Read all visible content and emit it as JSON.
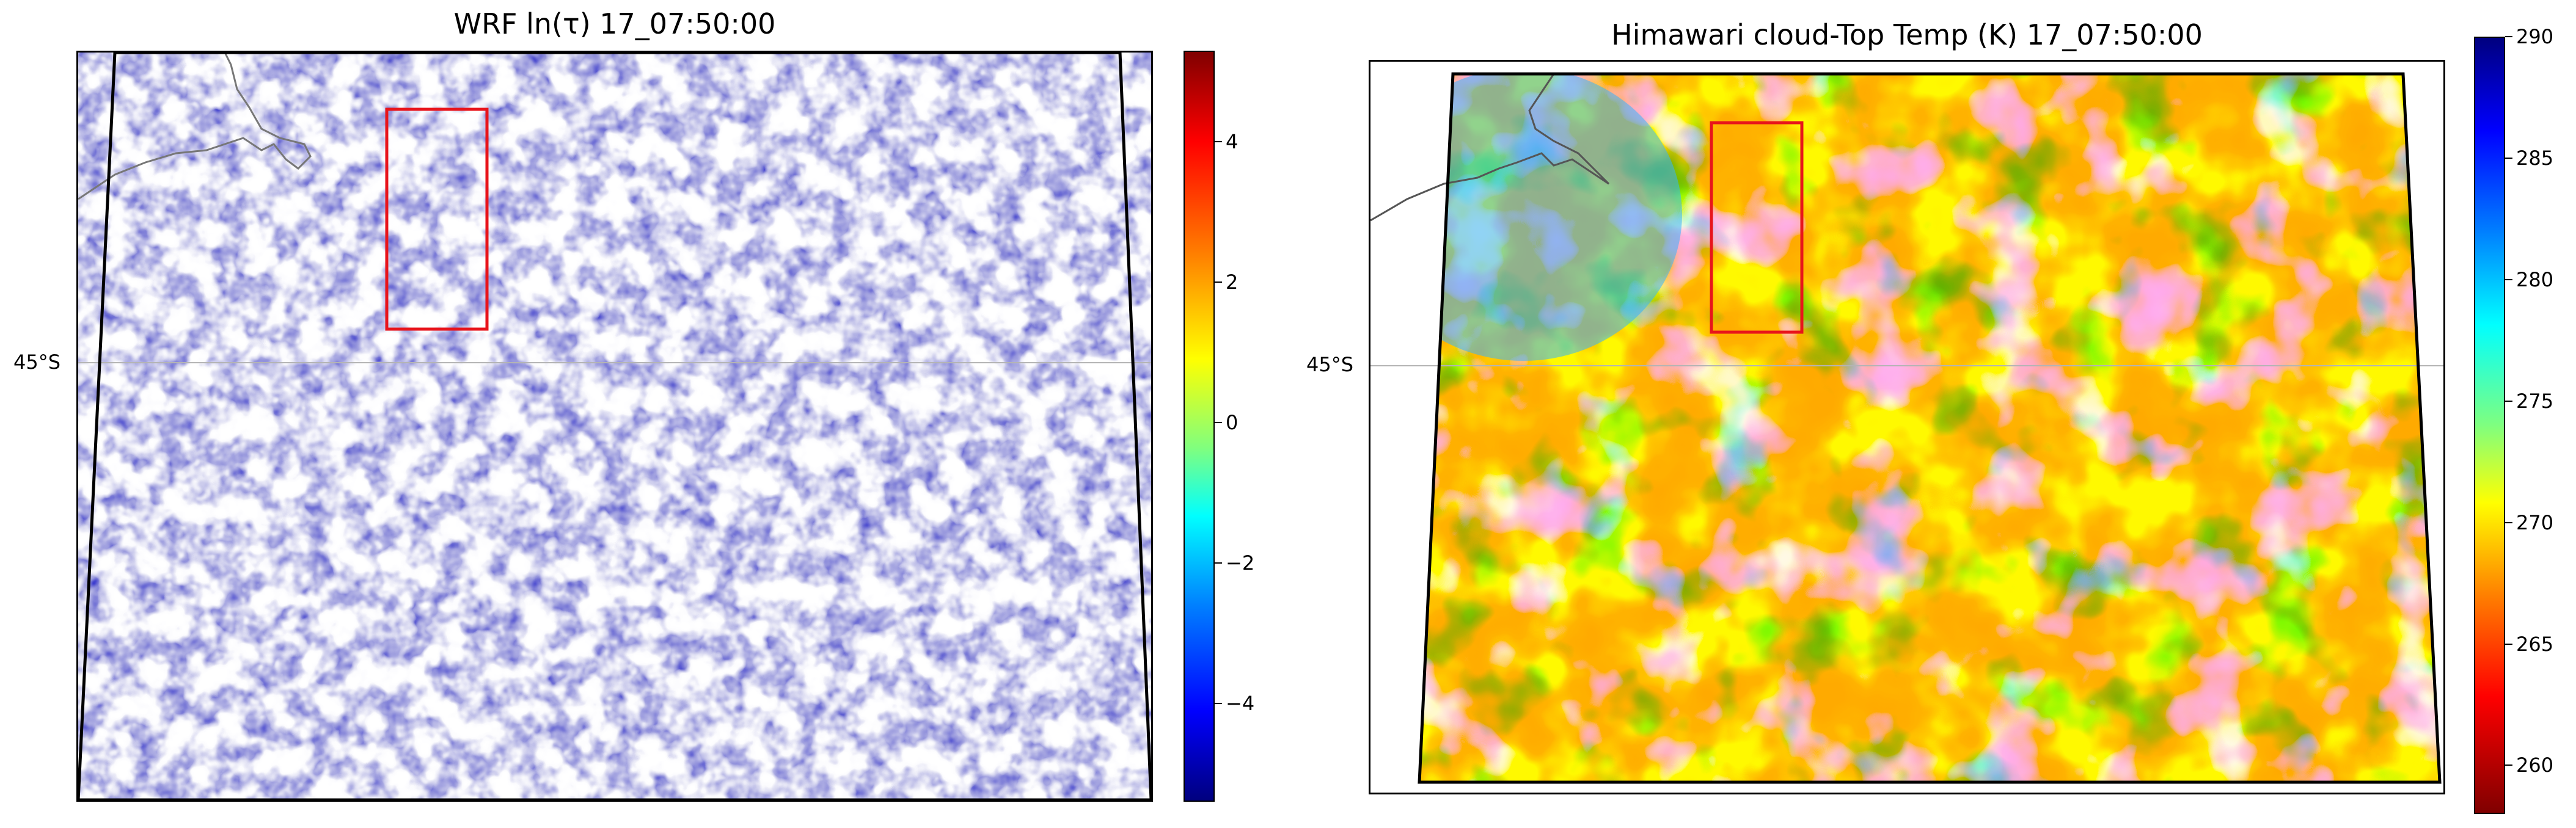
{
  "panels": {
    "left": {
      "title": "WRF ln(τ) 17_07:50:00",
      "lat_label": "45°S",
      "colormap": "jet",
      "colorbar": {
        "min": -5.4,
        "max": 5.3,
        "ticks": [
          "4",
          "2",
          "0",
          "−2",
          "−4"
        ],
        "tick_values": [
          4,
          2,
          0,
          -2,
          -4
        ]
      }
    },
    "right": {
      "title": "Himawari cloud-Top Temp (K) 17_07:50:00",
      "lat_label": "45°S",
      "colormap": "jet_r",
      "colorbar": {
        "min": 258,
        "max": 290,
        "ticks": [
          "290",
          "285",
          "280",
          "275",
          "270",
          "265",
          "260"
        ],
        "tick_values": [
          290,
          285,
          280,
          275,
          270,
          265,
          260
        ]
      }
    }
  },
  "colors": {
    "domain_boundary": "#000000",
    "region_box": "#e8141b",
    "coastline": "#777777",
    "gridline": "#b4b4b4"
  }
}
